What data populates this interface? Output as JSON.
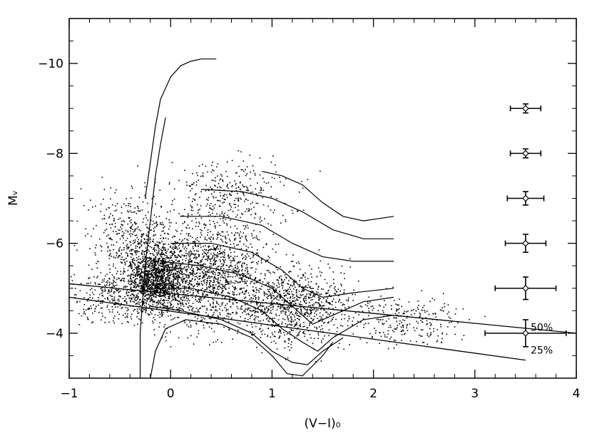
{
  "chart_data": {
    "type": "scatter",
    "title": "",
    "xlabel": "(V−I)₀",
    "ylabel": "Mᵥ",
    "xlim": [
      -1,
      4
    ],
    "ylim": [
      -3,
      -11
    ],
    "y_axis_inverted": true,
    "grid": false,
    "legend": "none",
    "x_ticks": [
      {
        "value": -1,
        "label": "−1"
      },
      {
        "value": 0,
        "label": "0"
      },
      {
        "value": 1,
        "label": "1"
      },
      {
        "value": 2,
        "label": "2"
      },
      {
        "value": 3,
        "label": "3"
      },
      {
        "value": 4,
        "label": "4"
      }
    ],
    "y_ticks": [
      {
        "value": -10,
        "label": "−10"
      },
      {
        "value": -8,
        "label": "−8"
      },
      {
        "value": -6,
        "label": "−6"
      },
      {
        "value": -4,
        "label": "−4"
      }
    ],
    "completeness_lines": [
      {
        "label": "50%",
        "points": [
          [
            -1,
            -5.1
          ],
          [
            4,
            -4.0
          ]
        ]
      },
      {
        "label": "25%",
        "points": [
          [
            -1,
            -4.8
          ],
          [
            3.5,
            -3.4
          ]
        ]
      }
    ],
    "error_bars": [
      {
        "x": 3.5,
        "y": -9.0,
        "xerr": 0.15,
        "yerr": 0.1
      },
      {
        "x": 3.5,
        "y": -8.0,
        "xerr": 0.15,
        "yerr": 0.1
      },
      {
        "x": 3.5,
        "y": -7.0,
        "xerr": 0.18,
        "yerr": 0.15
      },
      {
        "x": 3.5,
        "y": -6.0,
        "xerr": 0.2,
        "yerr": 0.2
      },
      {
        "x": 3.5,
        "y": -5.0,
        "xerr": 0.3,
        "yerr": 0.25
      },
      {
        "x": 3.5,
        "y": -4.0,
        "xerr": 0.4,
        "yerr": 0.3
      }
    ],
    "isochrones": [
      {
        "points": [
          [
            -0.25,
            -7.0
          ],
          [
            -0.2,
            -7.8
          ],
          [
            -0.15,
            -8.6
          ],
          [
            -0.1,
            -9.2
          ],
          [
            0.0,
            -9.7
          ],
          [
            0.1,
            -9.95
          ],
          [
            0.15,
            -10.0
          ],
          [
            0.2,
            -10.05
          ],
          [
            0.3,
            -10.1
          ],
          [
            0.45,
            -10.1
          ]
        ]
      },
      {
        "points": [
          [
            -0.3,
            -3.0
          ],
          [
            -0.3,
            -4.0
          ],
          [
            -0.25,
            -5.5
          ],
          [
            -0.2,
            -6.5
          ],
          [
            -0.15,
            -7.5
          ],
          [
            -0.1,
            -8.2
          ],
          [
            -0.05,
            -8.8
          ]
        ]
      },
      {
        "points": [
          [
            0.9,
            -7.6
          ],
          [
            1.1,
            -7.5
          ],
          [
            1.3,
            -7.3
          ],
          [
            1.5,
            -6.9
          ],
          [
            1.7,
            -6.6
          ],
          [
            1.9,
            -6.5
          ],
          [
            2.2,
            -6.6
          ]
        ]
      },
      {
        "points": [
          [
            0.3,
            -7.2
          ],
          [
            0.7,
            -7.15
          ],
          [
            1.0,
            -7.0
          ],
          [
            1.3,
            -6.7
          ],
          [
            1.6,
            -6.3
          ],
          [
            1.9,
            -6.1
          ],
          [
            2.2,
            -6.1
          ]
        ]
      },
      {
        "points": [
          [
            0.1,
            -6.6
          ],
          [
            0.5,
            -6.6
          ],
          [
            0.9,
            -6.4
          ],
          [
            1.2,
            -6.0
          ],
          [
            1.5,
            -5.7
          ],
          [
            1.8,
            -5.6
          ],
          [
            2.2,
            -5.6
          ]
        ]
      },
      {
        "points": [
          [
            0.0,
            -6.0
          ],
          [
            0.4,
            -6.0
          ],
          [
            0.8,
            -5.8
          ],
          [
            1.1,
            -5.4
          ],
          [
            1.3,
            -5.0
          ],
          [
            1.5,
            -4.8
          ],
          [
            1.8,
            -4.9
          ],
          [
            2.2,
            -5.0
          ]
        ]
      },
      {
        "points": [
          [
            -0.1,
            -5.6
          ],
          [
            0.3,
            -5.5
          ],
          [
            0.7,
            -5.3
          ],
          [
            1.0,
            -5.0
          ],
          [
            1.2,
            -4.6
          ],
          [
            1.4,
            -4.2
          ],
          [
            1.6,
            -4.4
          ],
          [
            1.9,
            -4.7
          ],
          [
            2.2,
            -4.8
          ]
        ]
      },
      {
        "points": [
          [
            -0.15,
            -5.0
          ],
          [
            0.2,
            -5.0
          ],
          [
            0.6,
            -4.8
          ],
          [
            0.9,
            -4.5
          ],
          [
            1.1,
            -4.1
          ],
          [
            1.3,
            -3.8
          ],
          [
            1.45,
            -3.6
          ],
          [
            1.6,
            -3.9
          ],
          [
            1.9,
            -4.3
          ],
          [
            2.2,
            -4.4
          ]
        ]
      },
      {
        "points": [
          [
            -0.2,
            -4.6
          ],
          [
            0.1,
            -4.5
          ],
          [
            0.5,
            -4.3
          ],
          [
            0.8,
            -4.0
          ],
          [
            1.0,
            -3.6
          ],
          [
            1.2,
            -3.35
          ],
          [
            1.35,
            -3.3
          ],
          [
            1.5,
            -3.6
          ],
          [
            1.7,
            -3.9
          ]
        ]
      },
      {
        "points": [
          [
            -0.2,
            -3.0
          ],
          [
            -0.15,
            -3.6
          ],
          [
            -0.05,
            -4.1
          ],
          [
            0.15,
            -4.3
          ],
          [
            0.5,
            -4.2
          ],
          [
            0.8,
            -3.9
          ],
          [
            1.0,
            -3.5
          ],
          [
            1.15,
            -3.1
          ],
          [
            1.3,
            -3.05
          ],
          [
            1.5,
            -3.5
          ],
          [
            1.6,
            -3.8
          ]
        ]
      }
    ],
    "scatter_regions": [
      {
        "x_center": -0.15,
        "x_spread": 0.3,
        "y_center": -5.2,
        "y_spread": 0.7,
        "count": 1400
      },
      {
        "x_center": 0.4,
        "x_spread": 0.55,
        "y_center": -5.3,
        "y_spread": 1.1,
        "count": 1300
      },
      {
        "x_center": 1.2,
        "x_spread": 0.55,
        "y_center": -4.6,
        "y_spread": 0.8,
        "count": 900
      },
      {
        "x_center": -0.4,
        "x_spread": 0.45,
        "y_center": -6.0,
        "y_spread": 1.2,
        "count": 500
      },
      {
        "x_center": 0.6,
        "x_spread": 0.6,
        "y_center": -7.0,
        "y_spread": 0.9,
        "count": 350
      },
      {
        "x_center": 2.3,
        "x_spread": 0.55,
        "y_center": -4.3,
        "y_spread": 0.6,
        "count": 260
      },
      {
        "x_center": -0.6,
        "x_spread": 0.35,
        "y_center": -4.8,
        "y_spread": 0.5,
        "count": 250
      }
    ]
  }
}
